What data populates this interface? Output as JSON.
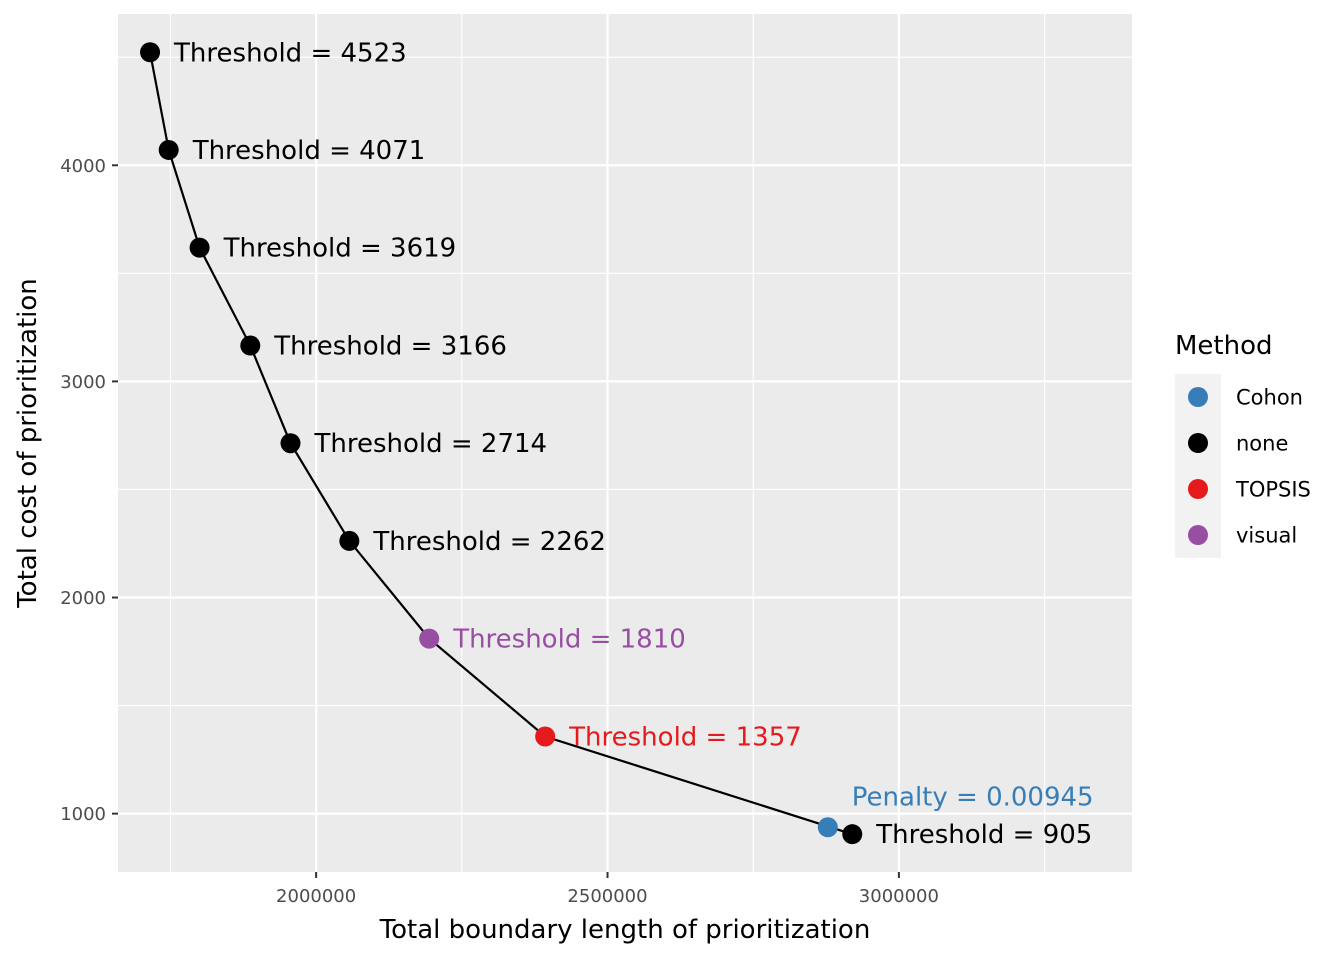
{
  "chart_data": {
    "type": "line",
    "xlabel": "Total boundary length of prioritization",
    "ylabel": "Total cost of prioritization",
    "xlim": [
      1660000,
      3400000
    ],
    "ylim": [
      730,
      4700
    ],
    "x_ticks": [
      {
        "value": 2000000,
        "label": "2000000"
      },
      {
        "value": 2500000,
        "label": "2500000"
      },
      {
        "value": 3000000,
        "label": "3000000"
      }
    ],
    "y_ticks": [
      {
        "value": 1000,
        "label": "1000"
      },
      {
        "value": 2000,
        "label": "2000"
      },
      {
        "value": 3000,
        "label": "3000"
      },
      {
        "value": 4000,
        "label": "4000"
      }
    ],
    "grid": true,
    "line": {
      "x": [
        1715000,
        1747000,
        1800000,
        1887000,
        1956000,
        2057000,
        2194000,
        2393000,
        2920000
      ],
      "y": [
        4523,
        4071,
        3619,
        3166,
        2714,
        2262,
        1810,
        1357,
        905
      ]
    },
    "points": [
      {
        "x": 1715000,
        "y": 4523,
        "method": "none",
        "label": "Threshold = 4523"
      },
      {
        "x": 1747000,
        "y": 4071,
        "method": "none",
        "label": "Threshold = 4071"
      },
      {
        "x": 1800000,
        "y": 3619,
        "method": "none",
        "label": "Threshold = 3619"
      },
      {
        "x": 1887000,
        "y": 3166,
        "method": "none",
        "label": "Threshold = 3166"
      },
      {
        "x": 1956000,
        "y": 2714,
        "method": "none",
        "label": "Threshold = 2714"
      },
      {
        "x": 2057000,
        "y": 2262,
        "method": "none",
        "label": "Threshold = 2262"
      },
      {
        "x": 2194000,
        "y": 1810,
        "method": "visual",
        "label": "Threshold = 1810"
      },
      {
        "x": 2393000,
        "y": 1357,
        "method": "TOPSIS",
        "label": "Threshold = 1357"
      },
      {
        "x": 2920000,
        "y": 905,
        "method": "none",
        "label": "Threshold = 905"
      },
      {
        "x": 2878000,
        "y": 937,
        "method": "Cohon",
        "label": "Penalty = 0.00945"
      }
    ],
    "legend": {
      "title": "Method",
      "position": "right",
      "entries": [
        {
          "name": "Cohon",
          "color": "#377eb8"
        },
        {
          "name": "none",
          "color": "#000000"
        },
        {
          "name": "TOPSIS",
          "color": "#e41a1c"
        },
        {
          "name": "visual",
          "color": "#984ea3"
        }
      ]
    },
    "colors": {
      "panel_background": "#ebebeb",
      "grid": "#ffffff",
      "line": "#000000"
    }
  }
}
